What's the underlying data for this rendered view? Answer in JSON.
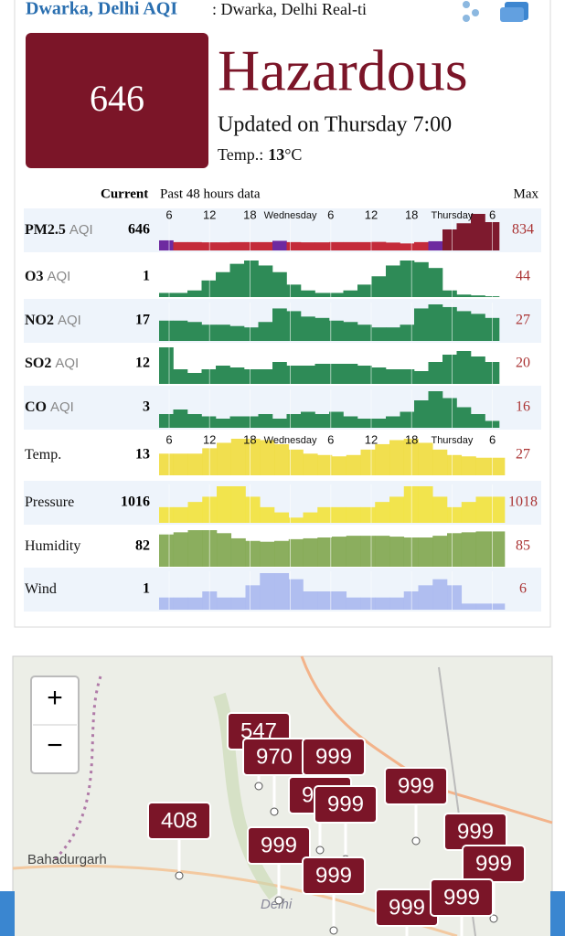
{
  "header": {
    "title": "Dwarka, Delhi AQI",
    "subtitle": ": Dwarka, Delhi Real-ti"
  },
  "summary": {
    "aqi": 646,
    "level": "Hazardous",
    "updated": "Updated on Thursday 7:00",
    "temp_label": "Temp.:",
    "temp_value": 13,
    "temp_unit": "°C"
  },
  "table": {
    "col_current": "Current",
    "col_past": "Past 48 hours data",
    "col_max": "Max",
    "time_labels": [
      "6",
      "12",
      "18",
      "Wednesday",
      "6",
      "12",
      "18",
      "Thursday",
      "6"
    ],
    "rows": [
      {
        "name": "PM2.5",
        "unit": "AQI",
        "current": 646,
        "max": 834,
        "values": [
          230,
          190,
          190,
          185,
          185,
          190,
          190,
          190,
          220,
          190,
          185,
          185,
          190,
          190,
          190,
          195,
          180,
          160,
          190,
          210,
          480,
          620,
          834,
          646
        ]
      },
      {
        "name": "O3",
        "unit": "AQI",
        "current": 1,
        "max": 44,
        "values": [
          5,
          5,
          8,
          20,
          30,
          40,
          44,
          38,
          30,
          15,
          8,
          5,
          5,
          8,
          15,
          25,
          38,
          44,
          42,
          35,
          8,
          3,
          2,
          1
        ]
      },
      {
        "name": "NO2",
        "unit": "AQI",
        "current": 17,
        "max": 27,
        "values": [
          15,
          15,
          14,
          12,
          12,
          11,
          10,
          14,
          24,
          22,
          18,
          17,
          15,
          14,
          12,
          10,
          10,
          12,
          24,
          27,
          25,
          22,
          20,
          17
        ]
      },
      {
        "name": "SO2",
        "unit": "AQI",
        "current": 12,
        "max": 20,
        "values": [
          20,
          8,
          6,
          8,
          10,
          9,
          8,
          8,
          12,
          10,
          10,
          11,
          11,
          11,
          10,
          9,
          8,
          8,
          7,
          12,
          16,
          18,
          15,
          12
        ]
      },
      {
        "name": "CO",
        "unit": "AQI",
        "current": 3,
        "max": 16,
        "values": [
          6,
          8,
          6,
          5,
          4,
          5,
          5,
          6,
          4,
          6,
          7,
          6,
          7,
          5,
          4,
          4,
          5,
          7,
          12,
          16,
          13,
          9,
          6,
          3
        ]
      },
      {
        "name": "Temp.",
        "current": 13,
        "max": 27,
        "color": "#f0dc3c",
        "values": [
          16,
          16,
          16,
          20,
          24,
          27,
          27,
          26,
          23,
          19,
          16,
          15,
          14,
          15,
          19,
          23,
          26,
          27,
          24,
          19,
          15,
          14,
          13,
          13
        ]
      },
      {
        "name": "Pressure",
        "current": 1016,
        "max": 1018,
        "color": "#f2e23a",
        "values": [
          1014,
          1014,
          1015,
          1016,
          1018,
          1018,
          1016,
          1014,
          1013,
          1012,
          1013,
          1014,
          1014,
          1014,
          1014,
          1015,
          1016,
          1018,
          1018,
          1016,
          1014,
          1015,
          1016,
          1016
        ]
      },
      {
        "name": "Humidity",
        "current": 82,
        "max": 85,
        "color": "#7ea54c",
        "values": [
          75,
          80,
          85,
          85,
          78,
          66,
          60,
          58,
          60,
          64,
          66,
          68,
          70,
          72,
          72,
          72,
          70,
          68,
          68,
          72,
          78,
          80,
          82,
          82
        ]
      },
      {
        "name": "Wind",
        "current": 1,
        "max": 6,
        "color": "#a9b8ee",
        "values": [
          2,
          2,
          2,
          3,
          2,
          2,
          4,
          6,
          6,
          5,
          3,
          3,
          3,
          2,
          2,
          2,
          2,
          3,
          4,
          5,
          4,
          1,
          1,
          1
        ]
      }
    ]
  },
  "map": {
    "zoom_in": "+",
    "zoom_out": "−",
    "places": [
      "Bahadurgarh",
      "Delhi"
    ],
    "markers": [
      "547",
      "970",
      "999",
      "999",
      "408",
      "999",
      "999",
      "999",
      "999",
      "999",
      "999",
      "999",
      "999"
    ]
  }
}
